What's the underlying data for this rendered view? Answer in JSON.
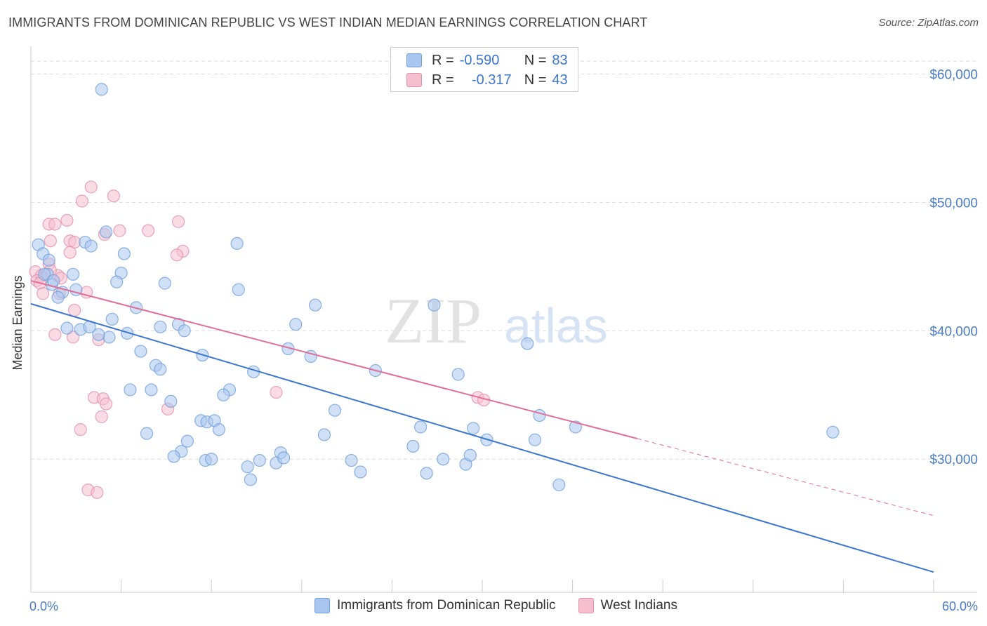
{
  "title": "IMMIGRANTS FROM DOMINICAN REPUBLIC VS WEST INDIAN MEDIAN EARNINGS CORRELATION CHART",
  "source": "Source: ZipAtlas.com",
  "watermark": {
    "zip": "ZIP",
    "atlas": "atlas"
  },
  "legend": {
    "rows": [
      {
        "r_label": "R =",
        "r_value": "-0.590",
        "n_label": "N =",
        "n_value": "83",
        "color": "#a9c6ef",
        "border": "#6f9fdc"
      },
      {
        "r_label": "R =",
        "r_value": "-0.317",
        "n_label": "N =",
        "n_value": "43",
        "color": "#f6bfd0",
        "border": "#e58fab"
      }
    ]
  },
  "bottom_legend": {
    "items": [
      "Immigrants from Dominican Republic",
      "West Indians"
    ]
  },
  "chart_data": {
    "type": "scatter",
    "title": "IMMIGRANTS FROM DOMINICAN REPUBLIC VS WEST INDIAN MEDIAN EARNINGS CORRELATION CHART",
    "xlabel": "",
    "ylabel": "Median Earnings",
    "xlim": [
      0,
      60
    ],
    "ylim": [
      20500,
      61500
    ],
    "x_tick_labels": [
      "0.0%",
      "60.0%"
    ],
    "y_ticks": [
      30000,
      40000,
      50000,
      60000
    ],
    "y_tick_labels": [
      "$30,000",
      "$40,000",
      "$50,000",
      "$60,000"
    ],
    "grid": true,
    "colors": {
      "blue": "#3a76d0",
      "pink": "#e26d98",
      "blue_fill": "#a9c6ef",
      "pink_fill": "#f6bfd0"
    },
    "series": [
      {
        "name": "Immigrants from Dominican Republic",
        "trend": {
          "x": [
            0,
            60
          ],
          "y": [
            42100,
            21200
          ]
        },
        "points": [
          [
            4.7,
            58800
          ],
          [
            0.5,
            46700
          ],
          [
            0.8,
            46000
          ],
          [
            1.2,
            45500
          ],
          [
            1.1,
            44400
          ],
          [
            2.8,
            44400
          ],
          [
            1.4,
            43600
          ],
          [
            2.1,
            43000
          ],
          [
            1.8,
            42600
          ],
          [
            3.0,
            43200
          ],
          [
            5.0,
            47700
          ],
          [
            3.6,
            46900
          ],
          [
            4.0,
            46600
          ],
          [
            6.2,
            46000
          ],
          [
            6.0,
            44500
          ],
          [
            5.7,
            43800
          ],
          [
            8.9,
            43700
          ],
          [
            7.0,
            41800
          ],
          [
            5.4,
            40900
          ],
          [
            2.4,
            40200
          ],
          [
            3.3,
            40100
          ],
          [
            3.9,
            40300
          ],
          [
            5.2,
            39500
          ],
          [
            4.5,
            39700
          ],
          [
            6.4,
            39800
          ],
          [
            8.6,
            40300
          ],
          [
            9.8,
            40500
          ],
          [
            10.2,
            40000
          ],
          [
            7.3,
            38400
          ],
          [
            8.3,
            37300
          ],
          [
            8.6,
            37000
          ],
          [
            11.4,
            38100
          ],
          [
            13.7,
            46800
          ],
          [
            13.8,
            43200
          ],
          [
            18.9,
            42000
          ],
          [
            17.6,
            40500
          ],
          [
            17.1,
            38600
          ],
          [
            18.6,
            38000
          ],
          [
            14.8,
            36800
          ],
          [
            13.2,
            35400
          ],
          [
            12.8,
            35000
          ],
          [
            6.6,
            35400
          ],
          [
            8.0,
            35400
          ],
          [
            9.3,
            34500
          ],
          [
            11.3,
            33000
          ],
          [
            11.7,
            32900
          ],
          [
            12.2,
            33000
          ],
          [
            12.5,
            32300
          ],
          [
            7.7,
            32000
          ],
          [
            10.4,
            31400
          ],
          [
            10.0,
            30600
          ],
          [
            9.5,
            30200
          ],
          [
            11.6,
            29900
          ],
          [
            12.0,
            30000
          ],
          [
            14.4,
            29400
          ],
          [
            15.2,
            29900
          ],
          [
            14.6,
            28400
          ],
          [
            16.6,
            30500
          ],
          [
            16.3,
            29700
          ],
          [
            16.8,
            30100
          ],
          [
            20.2,
            33800
          ],
          [
            19.5,
            31900
          ],
          [
            21.3,
            29900
          ],
          [
            21.9,
            29000
          ],
          [
            22.9,
            36900
          ],
          [
            25.4,
            31000
          ],
          [
            25.9,
            32500
          ],
          [
            26.3,
            28900
          ],
          [
            26.8,
            42000
          ],
          [
            27.4,
            30000
          ],
          [
            28.4,
            36600
          ],
          [
            28.9,
            29600
          ],
          [
            29.2,
            30300
          ],
          [
            29.4,
            32400
          ],
          [
            30.3,
            31500
          ],
          [
            33.0,
            39000
          ],
          [
            33.5,
            31500
          ],
          [
            33.8,
            33400
          ],
          [
            35.1,
            28000
          ],
          [
            36.2,
            32500
          ],
          [
            53.3,
            32100
          ],
          [
            0.9,
            44400
          ],
          [
            1.5,
            43900
          ]
        ]
      },
      {
        "name": "West Indians",
        "trend": {
          "x": [
            0,
            40.3
          ],
          "y": [
            43900,
            31600
          ]
        },
        "trend_dashed": {
          "x": [
            40.3,
            60
          ],
          "y": [
            31600,
            25600
          ]
        },
        "points": [
          [
            4.0,
            51200
          ],
          [
            5.5,
            50500
          ],
          [
            3.4,
            50100
          ],
          [
            2.4,
            48600
          ],
          [
            9.8,
            48500
          ],
          [
            1.2,
            48300
          ],
          [
            1.6,
            48300
          ],
          [
            7.8,
            47800
          ],
          [
            5.9,
            47800
          ],
          [
            4.9,
            47500
          ],
          [
            1.3,
            47000
          ],
          [
            2.6,
            47000
          ],
          [
            2.9,
            46900
          ],
          [
            10.1,
            46200
          ],
          [
            2.6,
            46100
          ],
          [
            9.7,
            45900
          ],
          [
            1.2,
            45200
          ],
          [
            0.3,
            44600
          ],
          [
            0.7,
            44300
          ],
          [
            1.8,
            44300
          ],
          [
            0.8,
            44100
          ],
          [
            2.0,
            44100
          ],
          [
            0.4,
            43900
          ],
          [
            0.6,
            43700
          ],
          [
            3.7,
            43000
          ],
          [
            0.8,
            42900
          ],
          [
            2.9,
            41600
          ],
          [
            1.6,
            39700
          ],
          [
            2.8,
            39500
          ],
          [
            4.5,
            39300
          ],
          [
            16.3,
            35200
          ],
          [
            4.2,
            34800
          ],
          [
            4.8,
            34700
          ],
          [
            5.0,
            34300
          ],
          [
            9.1,
            33900
          ],
          [
            4.7,
            33300
          ],
          [
            3.3,
            32300
          ],
          [
            29.7,
            34800
          ],
          [
            30.1,
            34600
          ],
          [
            3.8,
            27600
          ],
          [
            4.4,
            27400
          ],
          [
            1.9,
            42900
          ],
          [
            1.3,
            44700
          ]
        ]
      }
    ]
  }
}
